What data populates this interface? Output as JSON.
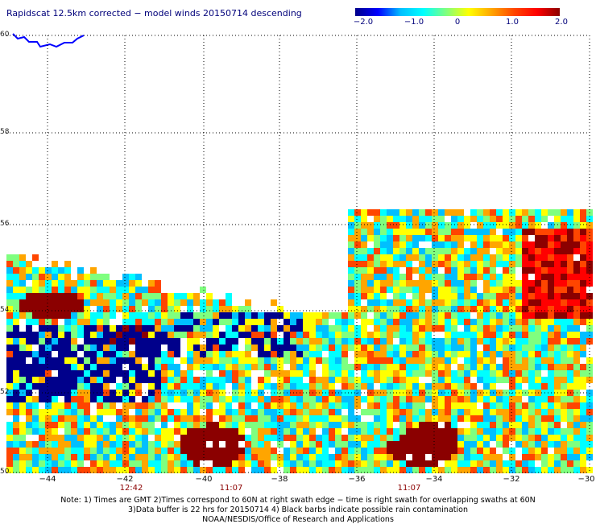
{
  "title": "Rapidscat 12.5km corrected − model winds 20150714 descending",
  "colorbar": {
    "ticks": [
      "−2.0",
      "−1.0",
      "0",
      "1.0",
      "2.0"
    ],
    "colors": [
      "#00008b",
      "#0000ff",
      "#00bfff",
      "#00ffff",
      "#7fff7f",
      "#ffff00",
      "#ffa500",
      "#ff4500",
      "#ff0000",
      "#8b0000"
    ],
    "min": -2.0,
    "max": 2.0
  },
  "axes": {
    "lat_labels": [
      "60",
      "58",
      "56",
      "54",
      "52",
      "50"
    ],
    "lon_labels": [
      "−44",
      "−42",
      "−40",
      "−38",
      "−36",
      "−34",
      "−32",
      "−30"
    ],
    "lat_range": [
      50,
      60
    ],
    "lon_range": [
      -45,
      -30
    ]
  },
  "time_labels": [
    {
      "text": "12:42",
      "lon": -42
    },
    {
      "text": "11:07",
      "lon": -39.5
    },
    {
      "text": "11:07",
      "lon": -35
    }
  ],
  "notes": [
    "Note: 1) Times are GMT 2)Times correspond to 60N at right swath edge − time is right swath for overlapping swaths at 60N",
    "3)Data buffer is 22 hrs for 20150714 4) Black barbs indicate possible rain contamination",
    "NOAA/NESDIS/Office of Research and Applications"
  ]
}
